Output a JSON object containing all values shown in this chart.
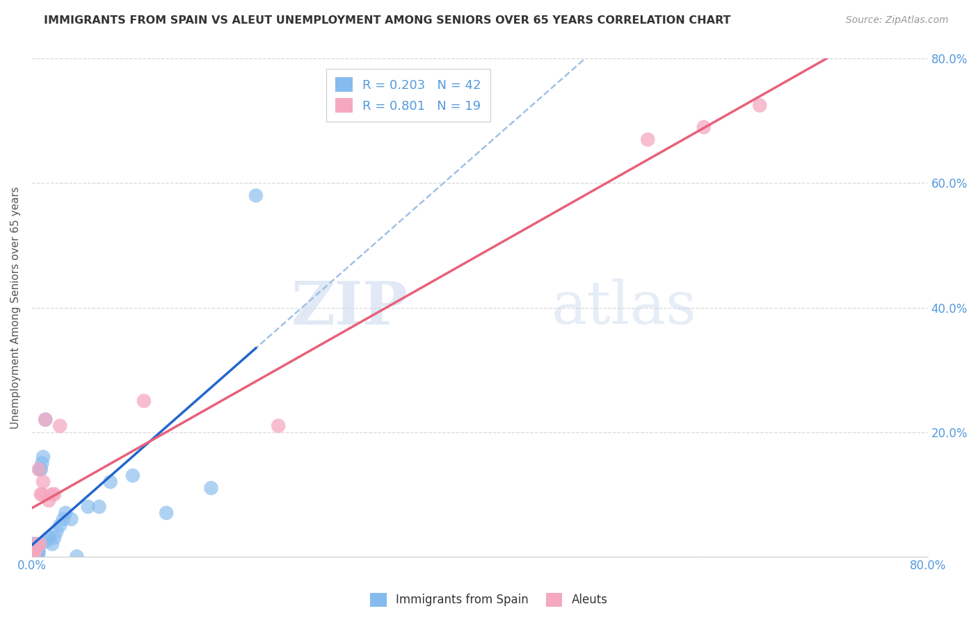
{
  "title": "IMMIGRANTS FROM SPAIN VS ALEUT UNEMPLOYMENT AMONG SENIORS OVER 65 YEARS CORRELATION CHART",
  "source": "Source: ZipAtlas.com",
  "ylabel": "Unemployment Among Seniors over 65 years",
  "xlim": [
    0.0,
    0.8
  ],
  "ylim": [
    0.0,
    0.8
  ],
  "xtick_positions": [
    0.0,
    0.1,
    0.2,
    0.3,
    0.4,
    0.5,
    0.6,
    0.7,
    0.8
  ],
  "xtick_labels": [
    "0.0%",
    "",
    "",
    "",
    "",
    "",
    "",
    "",
    "80.0%"
  ],
  "ytick_positions": [
    0.0,
    0.2,
    0.4,
    0.6,
    0.8
  ],
  "left_ytick_labels": [
    "",
    "",
    "",
    "",
    ""
  ],
  "right_ytick_labels": [
    "",
    "20.0%",
    "40.0%",
    "60.0%",
    "80.0%"
  ],
  "spain_x": [
    0.0005,
    0.001,
    0.001,
    0.001,
    0.001,
    0.0015,
    0.002,
    0.002,
    0.002,
    0.002,
    0.003,
    0.003,
    0.003,
    0.003,
    0.004,
    0.004,
    0.005,
    0.005,
    0.006,
    0.006,
    0.007,
    0.008,
    0.009,
    0.01,
    0.012,
    0.013,
    0.015,
    0.018,
    0.02,
    0.022,
    0.025,
    0.028,
    0.03,
    0.035,
    0.04,
    0.05,
    0.06,
    0.07,
    0.09,
    0.12,
    0.16,
    0.2
  ],
  "spain_y": [
    0.0,
    0.0,
    0.01,
    0.015,
    0.02,
    0.0,
    0.0,
    0.005,
    0.01,
    0.02,
    0.0,
    0.005,
    0.01,
    0.015,
    0.0,
    0.01,
    0.0,
    0.01,
    0.005,
    0.01,
    0.14,
    0.14,
    0.15,
    0.16,
    0.22,
    0.025,
    0.03,
    0.02,
    0.03,
    0.04,
    0.05,
    0.06,
    0.07,
    0.06,
    0.0,
    0.08,
    0.08,
    0.12,
    0.13,
    0.07,
    0.11,
    0.58
  ],
  "aleut_x": [
    0.001,
    0.002,
    0.003,
    0.004,
    0.006,
    0.007,
    0.008,
    0.009,
    0.01,
    0.012,
    0.015,
    0.018,
    0.02,
    0.025,
    0.1,
    0.22,
    0.55,
    0.6,
    0.65
  ],
  "aleut_y": [
    0.0,
    0.005,
    0.01,
    0.02,
    0.14,
    0.02,
    0.1,
    0.1,
    0.12,
    0.22,
    0.09,
    0.1,
    0.1,
    0.21,
    0.25,
    0.21,
    0.67,
    0.69,
    0.725
  ],
  "spain_color": "#85bbee",
  "aleut_color": "#f5a8c0",
  "spain_line_color": "#2266cc",
  "aleut_line_color": "#e8607a",
  "dashed_line_color": "#a0c0e8",
  "spain_R": 0.203,
  "spain_N": 42,
  "aleut_R": 0.801,
  "aleut_N": 19,
  "legend_label_spain": "Immigrants from Spain",
  "legend_label_aleut": "Aleuts",
  "watermark_zip": "ZIP",
  "watermark_atlas": "atlas",
  "background_color": "#ffffff",
  "grid_color": "#d8d8d8",
  "tick_color": "#5599dd",
  "title_color": "#333333",
  "source_color": "#999999"
}
